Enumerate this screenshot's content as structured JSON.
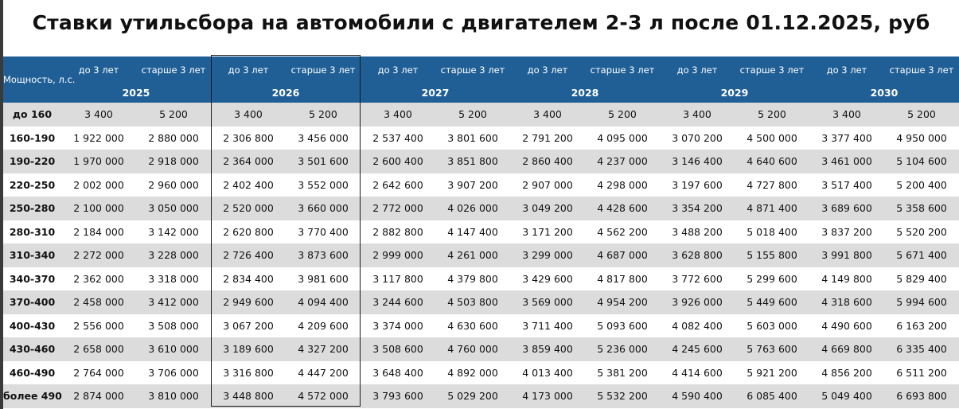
{
  "title": "Ставки утильсбора на автомобили с двигателем 2-3 л после 01.12.2025, руб",
  "header": {
    "power_label": "Мощность, л.с.",
    "col_labels": [
      "до 3 лет",
      "старше 3 лет",
      "до 3 лет",
      "старше 3 лет",
      "до 3 лет",
      "старше 3 лет",
      "до 3 лет",
      "старше 3 лет",
      "до 3 лет",
      "старше 3 лет",
      "до 3 лет",
      "старше 3 лет"
    ],
    "years": [
      "2025",
      "2026",
      "2027",
      "2028",
      "2029",
      "2030"
    ]
  },
  "highlight_year": "2026",
  "colors": {
    "header_bg": "#1f5f96",
    "header_text": "#ffffff",
    "shade_row": "#dcdcdc"
  },
  "rows": [
    {
      "label": "до 160",
      "values": [
        "3 400",
        "5 200",
        "3 400",
        "5 200",
        "3 400",
        "5 200",
        "3 400",
        "5 200",
        "3 400",
        "5 200",
        "3 400",
        "5 200"
      ]
    },
    {
      "label": "160-190",
      "values": [
        "1 922 000",
        "2 880 000",
        "2 306 800",
        "3 456 000",
        "2 537 400",
        "3 801 600",
        "2 791 200",
        "4 095 000",
        "3 070 200",
        "4 500 000",
        "3 377 400",
        "4 950 000"
      ]
    },
    {
      "label": "190-220",
      "values": [
        "1 970 000",
        "2 918 000",
        "2 364 000",
        "3 501 600",
        "2 600 400",
        "3 851 800",
        "2 860 400",
        "4 237 000",
        "3 146 400",
        "4 640 600",
        "3 461 000",
        "5 104 600"
      ]
    },
    {
      "label": "220-250",
      "values": [
        "2 002 000",
        "2 960 000",
        "2 402 400",
        "3 552 000",
        "2 642 600",
        "3 907 200",
        "2 907 000",
        "4 298 000",
        "3 197 600",
        "4 727 800",
        "3 517 400",
        "5 200 400"
      ]
    },
    {
      "label": "250-280",
      "values": [
        "2 100 000",
        "3 050 000",
        "2 520 000",
        "3 660 000",
        "2 772 000",
        "4 026 000",
        "3 049 200",
        "4 428 600",
        "3 354 200",
        "4 871 400",
        "3 689 600",
        "5 358 600"
      ]
    },
    {
      "label": "280-310",
      "values": [
        "2 184 000",
        "3 142 000",
        "2 620 800",
        "3 770 400",
        "2 882 800",
        "4 147 400",
        "3 171 200",
        "4 562 200",
        "3 488 200",
        "5 018 400",
        "3 837 200",
        "5 520 200"
      ]
    },
    {
      "label": "310-340",
      "values": [
        "2 272 000",
        "3 228 000",
        "2 726 400",
        "3 873 600",
        "2 999 000",
        "4 261 000",
        "3 299 000",
        "4 687 000",
        "3 628 800",
        "5 155 800",
        "3 991 800",
        "5 671 400"
      ]
    },
    {
      "label": "340-370",
      "values": [
        "2 362 000",
        "3 318 000",
        "2 834 400",
        "3 981 600",
        "3 117 800",
        "4 379 800",
        "3 429 600",
        "4 817 800",
        "3 772 600",
        "5 299 600",
        "4 149 800",
        "5 829 400"
      ]
    },
    {
      "label": "370-400",
      "values": [
        "2 458 000",
        "3 412 000",
        "2 949 600",
        "4 094 400",
        "3 244 600",
        "4 503 800",
        "3 569 000",
        "4 954 200",
        "3 926 000",
        "5 449 600",
        "4 318 600",
        "5 994 600"
      ]
    },
    {
      "label": "400-430",
      "values": [
        "2 556 000",
        "3 508 000",
        "3 067 200",
        "4 209 600",
        "3 374 000",
        "4 630 600",
        "3 711 400",
        "5 093 600",
        "4 082 400",
        "5 603 000",
        "4 490 600",
        "6 163 200"
      ]
    },
    {
      "label": "430-460",
      "values": [
        "2 658 000",
        "3 610 000",
        "3 189 600",
        "4 327 200",
        "3 508 600",
        "4 760 000",
        "3 859 400",
        "5 236 000",
        "4 245 600",
        "5 763 600",
        "4 669 800",
        "6 335 400"
      ]
    },
    {
      "label": "460-490",
      "values": [
        "2 764 000",
        "3 706 000",
        "3 316 800",
        "4 447 200",
        "3 648 400",
        "4 892 000",
        "4 013 400",
        "5 381 200",
        "4 414 600",
        "5 921 200",
        "4 856 200",
        "6 511 200"
      ]
    },
    {
      "label": "более 490",
      "values": [
        "2 874 000",
        "3 810 000",
        "3 448 800",
        "4 572 000",
        "3 793 600",
        "5 029 200",
        "4 173 000",
        "5 532 200",
        "4 590 400",
        "6 085 400",
        "5 049 400",
        "6 693 800"
      ]
    }
  ]
}
